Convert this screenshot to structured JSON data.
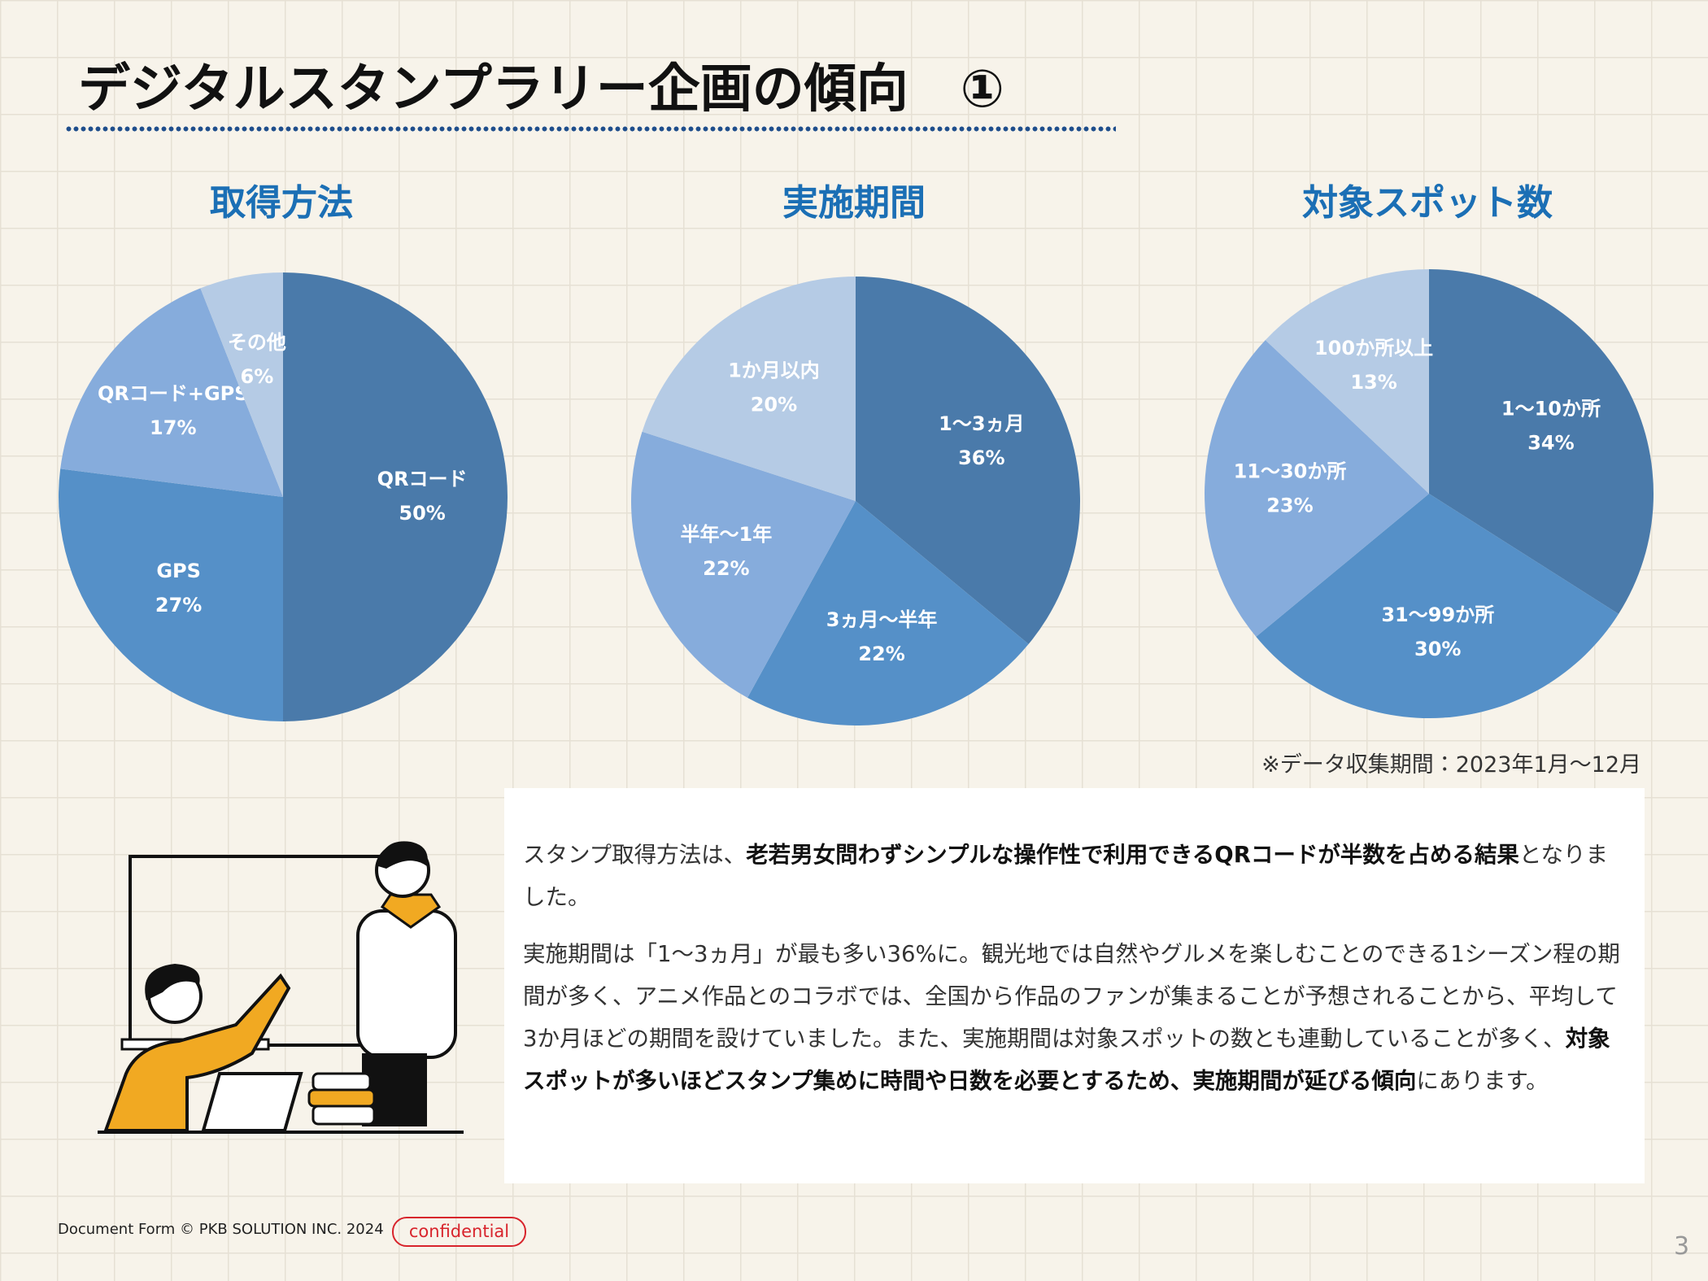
{
  "header": {
    "title": "デジタルスタンプラリー企画の傾向　①"
  },
  "chart_data": [
    {
      "type": "pie",
      "title": "取得方法",
      "categories": [
        "QRコード",
        "GPS",
        "QRコード+GPS",
        "その他"
      ],
      "values": [
        50,
        27,
        17,
        6
      ],
      "value_labels": [
        "50%",
        "27%",
        "17%",
        "6%"
      ],
      "colors": [
        "#4a7aaa",
        "#5590c8",
        "#86acdc",
        "#b5cbe5"
      ]
    },
    {
      "type": "pie",
      "title": "実施期間",
      "categories": [
        "1〜3ヵ月",
        "3ヵ月〜半年",
        "半年〜1年",
        "1か月以内"
      ],
      "values": [
        36,
        22,
        22,
        20
      ],
      "value_labels": [
        "36%",
        "22%",
        "22%",
        "20%"
      ],
      "colors": [
        "#4a7aaa",
        "#5590c8",
        "#86acdc",
        "#b5cbe5"
      ]
    },
    {
      "type": "pie",
      "title": "対象スポット数",
      "categories": [
        "1〜10か所",
        "31〜99か所",
        "11〜30か所",
        "100か所以上"
      ],
      "values": [
        34,
        30,
        23,
        13
      ],
      "value_labels": [
        "34%",
        "30%",
        "23%",
        "13%"
      ],
      "colors": [
        "#4a7aaa",
        "#5590c8",
        "#86acdc",
        "#b5cbe5"
      ]
    }
  ],
  "note": "※データ収集期間：2023年1月〜12月",
  "body": {
    "paragraphs": [
      [
        {
          "text": "スタンプ取得方法は、"
        },
        {
          "text": "老若男女問わずシンプルな操作性で利用できるQRコードが半数を占める結果",
          "bold": true
        },
        {
          "text": "となりました。"
        }
      ],
      [
        {
          "text": "実施期間は「1〜3ヵ月」が最も多い36%に。観光地では自然やグルメを楽しむことのできる1シーズン程の期間が多く、アニメ作品とのコラボでは、全国から作品のファンが集まることが予想されることから、平均して3か月ほどの期間を設けていました。また、実施期間は対象スポットの数とも連動していることが多く、"
        },
        {
          "text": "対象スポットが多いほどスタンプ集めに時間や日数を必要とするため、実施期間が延びる傾向",
          "bold": true
        },
        {
          "text": "にあります。"
        }
      ]
    ]
  },
  "footer": {
    "copyright": "Document Form © PKB SOLUTION INC. 2024",
    "badge": "confidential",
    "page": "3"
  }
}
